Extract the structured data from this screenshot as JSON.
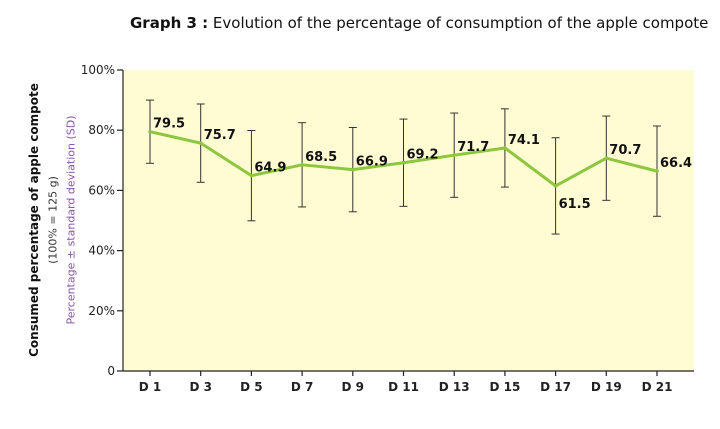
{
  "chart_data": {
    "type": "line",
    "title_prefix": "Graph 3 :",
    "title": "Evolution of the percentage of consumption of the apple compote",
    "ylabel": "Consumed percentage of apple compote",
    "ylabel_sub": "(100% = 125 g)",
    "ylabel_note": "Percentage ± standard deviation (SD)",
    "categories": [
      "D 1",
      "D 3",
      "D 5",
      "D 7",
      "D 9",
      "D 11",
      "D 13",
      "D 15",
      "D 17",
      "D 19",
      "D 21"
    ],
    "values": [
      79.5,
      75.7,
      64.9,
      68.5,
      66.9,
      69.2,
      71.7,
      74.1,
      61.5,
      70.7,
      66.4
    ],
    "sd": [
      10.5,
      13,
      15,
      14,
      14,
      14.5,
      14,
      13,
      16,
      14,
      15
    ],
    "value_labels": [
      "79.5",
      "75.7",
      "64.9",
      "68.5",
      "66.9",
      "69.2",
      "71.7",
      "74.1",
      "61.5",
      "70.7",
      "66.4"
    ],
    "yticks": [
      0,
      20,
      40,
      60,
      80,
      100
    ],
    "ytick_labels": [
      "0",
      "20%",
      "40%",
      "60%",
      "80%",
      "100%"
    ],
    "ylim": [
      0,
      100
    ],
    "grid": false,
    "colors": {
      "line": "#8dc63f",
      "plot_bg": "#fffbd3",
      "ylabel_note": "#8a57a8",
      "axis": "#222222"
    }
  }
}
